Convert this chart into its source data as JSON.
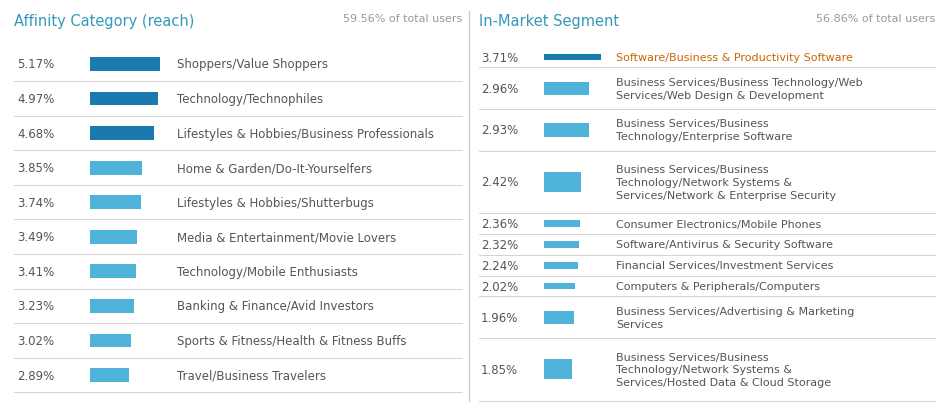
{
  "left_title": "Affinity Category (reach)",
  "left_subtitle": "59.56% of total users",
  "left_title_color": "#3399bb",
  "left_subtitle_color": "#999999",
  "left_rows": [
    {
      "pct": "5.17%",
      "value": 5.17,
      "label": "Shoppers/Value Shoppers",
      "dark": true
    },
    {
      "pct": "4.97%",
      "value": 4.97,
      "label": "Technology/Technophiles",
      "dark": true
    },
    {
      "pct": "4.68%",
      "value": 4.68,
      "label": "Lifestyles & Hobbies/Business Professionals",
      "dark": true
    },
    {
      "pct": "3.85%",
      "value": 3.85,
      "label": "Home & Garden/Do-It-Yourselfers",
      "dark": false
    },
    {
      "pct": "3.74%",
      "value": 3.74,
      "label": "Lifestyles & Hobbies/Shutterbugs",
      "dark": false
    },
    {
      "pct": "3.49%",
      "value": 3.49,
      "label": "Media & Entertainment/Movie Lovers",
      "dark": false
    },
    {
      "pct": "3.41%",
      "value": 3.41,
      "label": "Technology/Mobile Enthusiasts",
      "dark": false
    },
    {
      "pct": "3.23%",
      "value": 3.23,
      "label": "Banking & Finance/Avid Investors",
      "dark": false
    },
    {
      "pct": "3.02%",
      "value": 3.02,
      "label": "Sports & Fitness/Health & Fitness Buffs",
      "dark": false
    },
    {
      "pct": "2.89%",
      "value": 2.89,
      "label": "Travel/Business Travelers",
      "dark": false
    }
  ],
  "right_title": "In-Market Segment",
  "right_subtitle": "56.86% of total users",
  "right_title_color": "#3399bb",
  "right_subtitle_color": "#999999",
  "right_rows": [
    {
      "pct": "3.71%",
      "value": 3.71,
      "label": "Software/Business & Productivity Software",
      "dark": true,
      "lines": 1
    },
    {
      "pct": "2.96%",
      "value": 2.96,
      "label": "Business Services/Business Technology/Web\nServices/Web Design & Development",
      "dark": false,
      "lines": 2
    },
    {
      "pct": "2.93%",
      "value": 2.93,
      "label": "Business Services/Business\nTechnology/Enterprise Software",
      "dark": false,
      "lines": 2
    },
    {
      "pct": "2.42%",
      "value": 2.42,
      "label": "Business Services/Business\nTechnology/Network Systems &\nServices/Network & Enterprise Security",
      "dark": false,
      "lines": 3
    },
    {
      "pct": "2.36%",
      "value": 2.36,
      "label": "Consumer Electronics/Mobile Phones",
      "dark": false,
      "lines": 1
    },
    {
      "pct": "2.32%",
      "value": 2.32,
      "label": "Software/Antivirus & Security Software",
      "dark": false,
      "lines": 1
    },
    {
      "pct": "2.24%",
      "value": 2.24,
      "label": "Financial Services/Investment Services",
      "dark": false,
      "lines": 1
    },
    {
      "pct": "2.02%",
      "value": 2.02,
      "label": "Computers & Peripherals/Computers",
      "dark": false,
      "lines": 1
    },
    {
      "pct": "1.96%",
      "value": 1.96,
      "label": "Business Services/Advertising & Marketing\nServices",
      "dark": false,
      "lines": 2
    },
    {
      "pct": "1.85%",
      "value": 1.85,
      "label": "Business Services/Business\nTechnology/Network Systems &\nServices/Hosted Data & Cloud Storage",
      "dark": false,
      "lines": 3
    }
  ],
  "dark_bar_color": "#1a7aad",
  "light_bar_color": "#4fb3d9",
  "bg_color": "#ffffff",
  "text_color": "#555555",
  "pct_color": "#555555",
  "divider_color": "#cccccc",
  "label_color_dark": "#cc6600",
  "label_color_normal": "#555555"
}
